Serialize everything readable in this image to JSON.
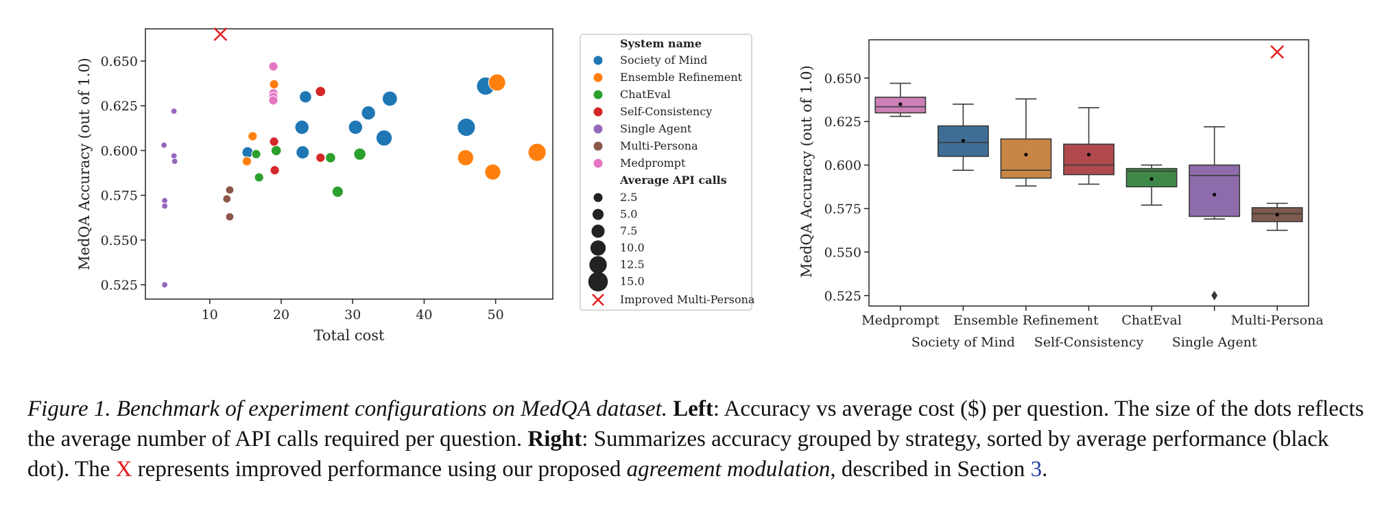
{
  "chart_data": [
    {
      "type": "scatter",
      "xlabel": "Total cost",
      "ylabel": "MedQA Accuracy (out of 1.0)",
      "xlim": [
        1,
        58
      ],
      "ylim": [
        0.517,
        0.668
      ],
      "xticks": [
        10,
        20,
        30,
        40,
        50
      ],
      "yticks": [
        0.525,
        0.55,
        0.575,
        0.6,
        0.625,
        0.65
      ],
      "ytick_labels": [
        "0.525",
        "0.550",
        "0.575",
        "0.600",
        "0.625",
        "0.650"
      ],
      "legend_placement": "outside right",
      "legend": {
        "hue_title": "System name",
        "size_title": "Average API calls",
        "size_levels": [
          "2.5",
          "5.0",
          "7.5",
          "10.0",
          "12.5",
          "15.0"
        ],
        "marker_label": "Improved Multi-Persona"
      },
      "series": [
        {
          "name": "Society of Mind",
          "color": "#1f77b4",
          "points": [
            [
              15.3,
              0.599,
              7
            ],
            [
              22.9,
              0.613,
              10
            ],
            [
              23.4,
              0.63,
              8
            ],
            [
              23.0,
              0.599,
              9
            ],
            [
              30.4,
              0.613,
              10
            ],
            [
              32.2,
              0.621,
              10
            ],
            [
              34.4,
              0.607,
              12
            ],
            [
              35.2,
              0.629,
              11
            ],
            [
              45.9,
              0.613,
              14
            ],
            [
              48.6,
              0.636,
              14
            ]
          ]
        },
        {
          "name": "Ensemble Refinement",
          "color": "#ff7f0e",
          "points": [
            [
              15.2,
              0.594,
              5
            ],
            [
              16.0,
              0.608,
              5
            ],
            [
              19.0,
              0.637,
              5
            ],
            [
              45.8,
              0.596,
              12
            ],
            [
              49.6,
              0.588,
              12
            ],
            [
              50.2,
              0.638,
              13
            ],
            [
              55.8,
              0.599,
              14
            ]
          ]
        },
        {
          "name": "ChatEval",
          "color": "#2ca02c",
          "points": [
            [
              16.5,
              0.598,
              5
            ],
            [
              16.9,
              0.585,
              5
            ],
            [
              19.3,
              0.6,
              6
            ],
            [
              26.9,
              0.596,
              6
            ],
            [
              27.9,
              0.577,
              7
            ],
            [
              31.0,
              0.598,
              8
            ]
          ]
        },
        {
          "name": "Self-Consistency",
          "color": "#d62728",
          "points": [
            [
              19.0,
              0.605,
              5
            ],
            [
              19.1,
              0.589,
              5
            ],
            [
              25.5,
              0.596,
              5
            ],
            [
              25.5,
              0.633,
              6
            ]
          ]
        },
        {
          "name": "Single Agent",
          "color": "#9467bd",
          "points": [
            [
              3.6,
              0.603,
              2
            ],
            [
              3.7,
              0.572,
              2
            ],
            [
              3.7,
              0.569,
              2
            ],
            [
              3.7,
              0.525,
              2
            ],
            [
              5.0,
              0.622,
              2
            ],
            [
              5.0,
              0.597,
              2
            ],
            [
              5.1,
              0.594,
              2
            ]
          ]
        },
        {
          "name": "Multi-Persona",
          "color": "#8c564b",
          "points": [
            [
              12.4,
              0.573,
              4
            ],
            [
              12.8,
              0.578,
              4
            ],
            [
              12.8,
              0.563,
              4
            ]
          ]
        },
        {
          "name": "Medprompt",
          "color": "#e377c2",
          "points": [
            [
              18.9,
              0.647,
              5
            ],
            [
              18.9,
              0.632,
              5
            ],
            [
              18.9,
              0.63,
              5
            ],
            [
              18.9,
              0.628,
              5
            ]
          ]
        }
      ],
      "improved_point": {
        "name": "Improved Multi-Persona",
        "x": 11.5,
        "y": 0.665,
        "color": "#e41a1c"
      }
    },
    {
      "type": "box",
      "ylabel": "MedQA Accuracy (out of 1.0)",
      "ylim": [
        0.519,
        0.672
      ],
      "yticks": [
        0.525,
        0.55,
        0.575,
        0.6,
        0.625,
        0.65
      ],
      "ytick_labels": [
        "0.525",
        "0.550",
        "0.575",
        "0.600",
        "0.625",
        "0.650"
      ],
      "categories": [
        "Medprompt",
        "Society of Mind",
        "Ensemble Refinement",
        "Self-Consistency",
        "ChatEval",
        "Single Agent",
        "Multi-Persona"
      ],
      "boxes": [
        {
          "name": "Medprompt",
          "color": "#cd7fb6",
          "whisker_low": 0.628,
          "q1": 0.63,
          "median": 0.6335,
          "q3": 0.639,
          "whisker_high": 0.647,
          "mean": 0.635
        },
        {
          "name": "Society of Mind",
          "color": "#3f6d96",
          "whisker_low": 0.597,
          "q1": 0.605,
          "median": 0.613,
          "q3": 0.6225,
          "whisker_high": 0.635,
          "mean": 0.614
        },
        {
          "name": "Ensemble Refinement",
          "color": "#c98546",
          "whisker_low": 0.588,
          "q1": 0.5925,
          "median": 0.597,
          "q3": 0.615,
          "whisker_high": 0.638,
          "mean": 0.606
        },
        {
          "name": "Self-Consistency",
          "color": "#b04a4e",
          "whisker_low": 0.589,
          "q1": 0.5945,
          "median": 0.6,
          "q3": 0.612,
          "whisker_high": 0.633,
          "mean": 0.606
        },
        {
          "name": "ChatEval",
          "color": "#3e8948",
          "whisker_low": 0.577,
          "q1": 0.5875,
          "median": 0.5965,
          "q3": 0.598,
          "whisker_high": 0.6,
          "mean": 0.592
        },
        {
          "name": "Single Agent",
          "color": "#8e6cab",
          "whisker_low": 0.569,
          "q1": 0.5705,
          "median": 0.594,
          "q3": 0.6,
          "whisker_high": 0.622,
          "mean": 0.583,
          "outliers": [
            0.525
          ]
        },
        {
          "name": "Multi-Persona",
          "color": "#7d5b4e",
          "whisker_low": 0.5625,
          "q1": 0.5675,
          "median": 0.572,
          "q3": 0.5755,
          "whisker_high": 0.578,
          "mean": 0.5715
        }
      ],
      "improved_point": {
        "name": "Improved Multi-Persona",
        "category": "Multi-Persona",
        "y": 0.665,
        "color": "#e41a1c"
      }
    }
  ],
  "caption": {
    "figure_label": "Figure 1. Benchmark of experiment configurations on MedQA dataset.",
    "left_label": "Left",
    "left_text": ": Accuracy vs average cost ($) per question. The size of the dots reflects the average number of API calls required per question.",
    "right_label": "Right",
    "right_text_1": ": Summarizes accuracy grouped by strategy, sorted by average performance (black dot). The",
    "x_mark": "X",
    "right_text_2": "represents improved performance using our proposed",
    "method_name": "agreement modulation",
    "right_text_3": ", described in Section",
    "section_ref": "3",
    "end": "."
  }
}
